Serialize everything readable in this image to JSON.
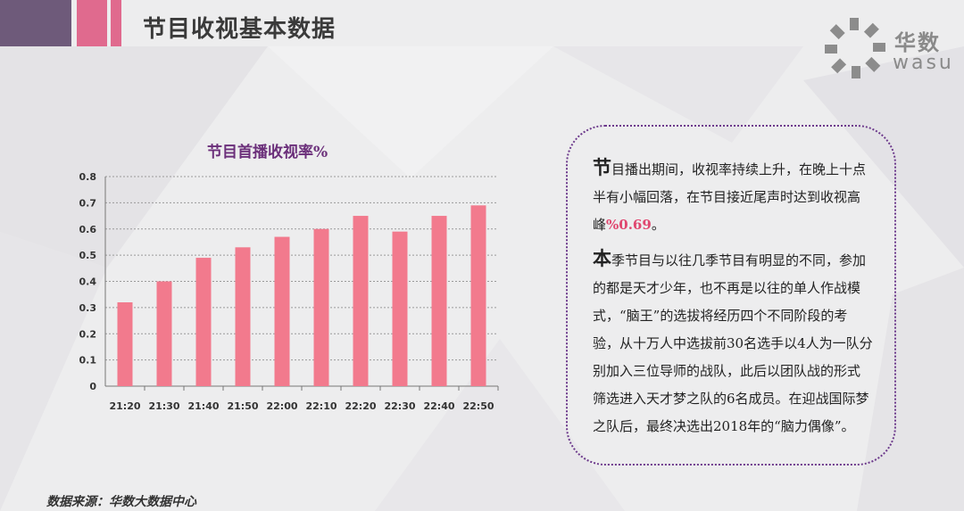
{
  "header": {
    "title": "节目收视基本数据"
  },
  "logo": {
    "cn": "华数",
    "en": "wasu"
  },
  "chart_data": {
    "type": "bar",
    "title": "节目首播收视率%",
    "categories": [
      "21:20",
      "21:30",
      "21:40",
      "21:50",
      "22:00",
      "22:10",
      "22:20",
      "22:30",
      "22:40",
      "22:50"
    ],
    "values": [
      0.32,
      0.4,
      0.49,
      0.53,
      0.57,
      0.6,
      0.65,
      0.59,
      0.65,
      0.69
    ],
    "yticks": [
      "0",
      "0.1",
      "0.2",
      "0.3",
      "0.4",
      "0.5",
      "0.6",
      "0.7",
      "0.8"
    ],
    "ylim": [
      0,
      0.8
    ],
    "grid": true,
    "bar_color": "#f27a8d"
  },
  "textbox": {
    "p1_initial": "节",
    "p1_text": "目播出期间，收视率持续上升，在晚上十点半有小幅回落，在节目接近尾声时达到收视高峰",
    "p1_highlight": "%0.69",
    "p1_end": "。",
    "p2_initial": "本",
    "p2_text": "季节目与以往几季节目有明显的不同，参加的都是天才少年，也不再是以往的单人作战模式，“脑王”的选拔将经历四个不同阶段的考验，从十万人中选拔前30名选手以4人为一队分别加入三位导师的战队，此后以团队战的形式筛选进入天才梦之队的6名成员。在迎战国际梦之队后，最终决选出2018年的“脑力偶像”。"
  },
  "footer": {
    "source": "数据来源：华数大数据中心"
  }
}
